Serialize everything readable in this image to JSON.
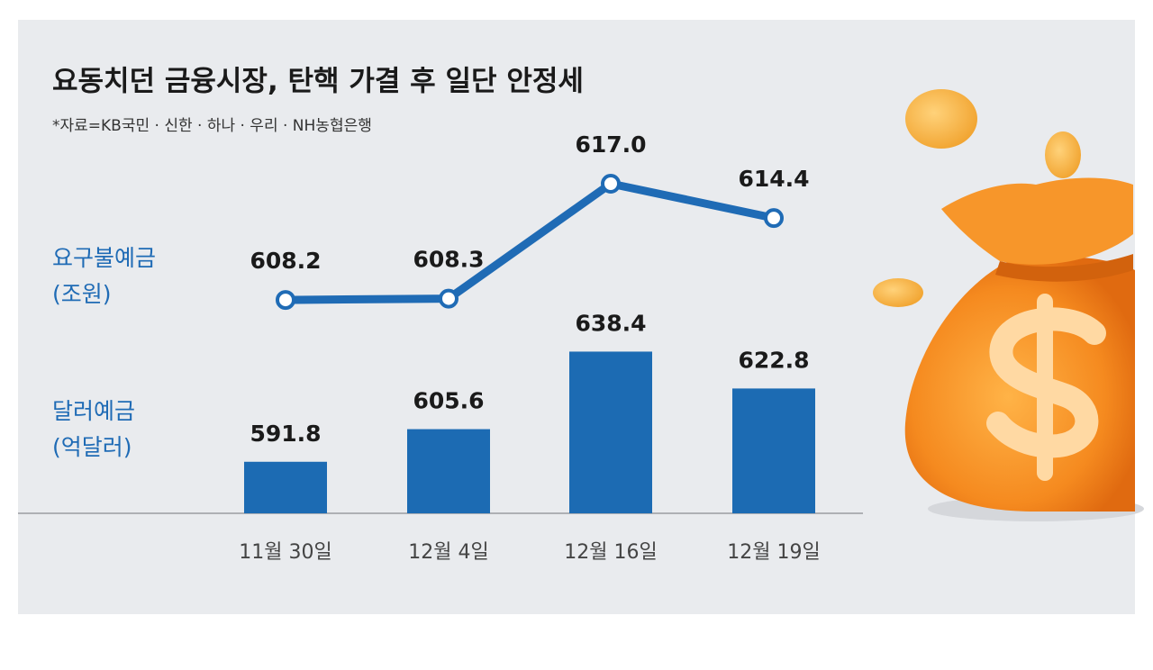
{
  "chart_data": {
    "type": "combo",
    "title": "요동치던 금융시장, 탄핵 가결 후 일단 안정세",
    "subtitle": "*자료=KB국민 · 신한 · 하나 · 우리 · NH농협은행",
    "categories": [
      "11월 30일",
      "12월 4일",
      "12월 16일",
      "12월 19일"
    ],
    "series": [
      {
        "name": "요구불예금",
        "unit": "(조원)",
        "type": "line",
        "axis": "y2",
        "color": "#1f6bb5",
        "values": [
          608.2,
          608.3,
          617.0,
          614.4
        ],
        "value_labels": [
          "608.2",
          "608.3",
          "617.0",
          "614.4"
        ]
      },
      {
        "name": "달러예금",
        "unit": "(억달러)",
        "type": "bar",
        "color": "#1c6bb3",
        "values": [
          591.8,
          605.6,
          638.4,
          622.8
        ]
      }
    ],
    "ylim": [
      570,
      650
    ],
    "y2lim": [
      605,
      620
    ]
  }
}
